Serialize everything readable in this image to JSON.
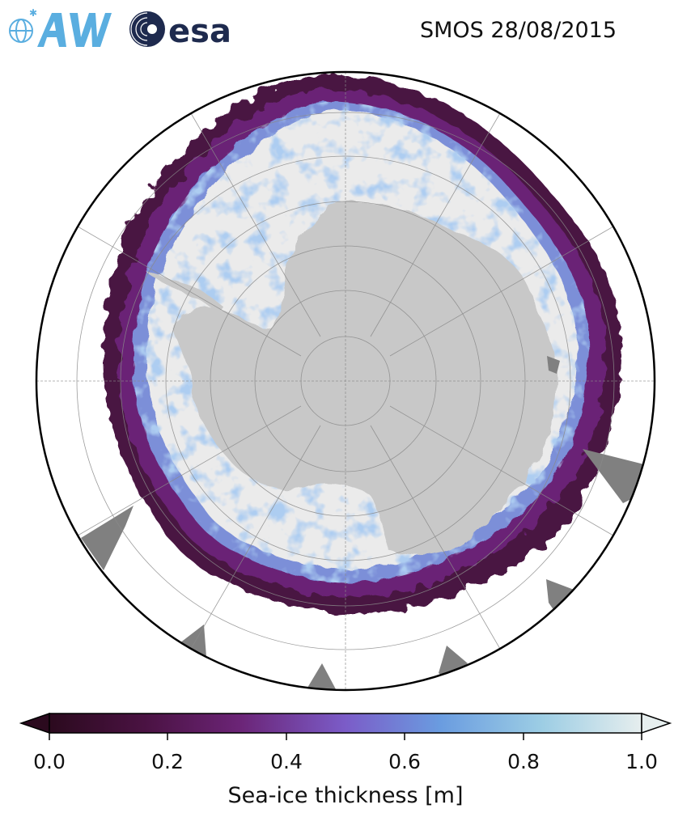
{
  "header": {
    "title": "SMOS 28/08/2015",
    "logos": [
      {
        "name": "AWI",
        "text": "AWI",
        "color": "#5aaee0"
      },
      {
        "name": "ESA",
        "text": "esa",
        "color": "#1e2a4e"
      }
    ]
  },
  "map": {
    "projection": "south-polar-stereographic",
    "region": "Antarctica / Southern Ocean",
    "colors": {
      "land": "#c8c8c8",
      "thick_ice": "#ebebeb",
      "no_data": "#808080",
      "ocean": "#ffffff",
      "graticule": "#9a9a9a"
    }
  },
  "colorbar": {
    "label": "Sea-ice thickness [m]",
    "min": 0.0,
    "max": 1.0,
    "extend": "both",
    "ticks": [
      "0.0",
      "0.2",
      "0.4",
      "0.6",
      "0.8",
      "1.0"
    ],
    "colormap": [
      "#2b0a1e",
      "#4a1242",
      "#6b2476",
      "#7b5cc8",
      "#6a9ce0",
      "#9ccde4",
      "#e6eeee"
    ]
  }
}
